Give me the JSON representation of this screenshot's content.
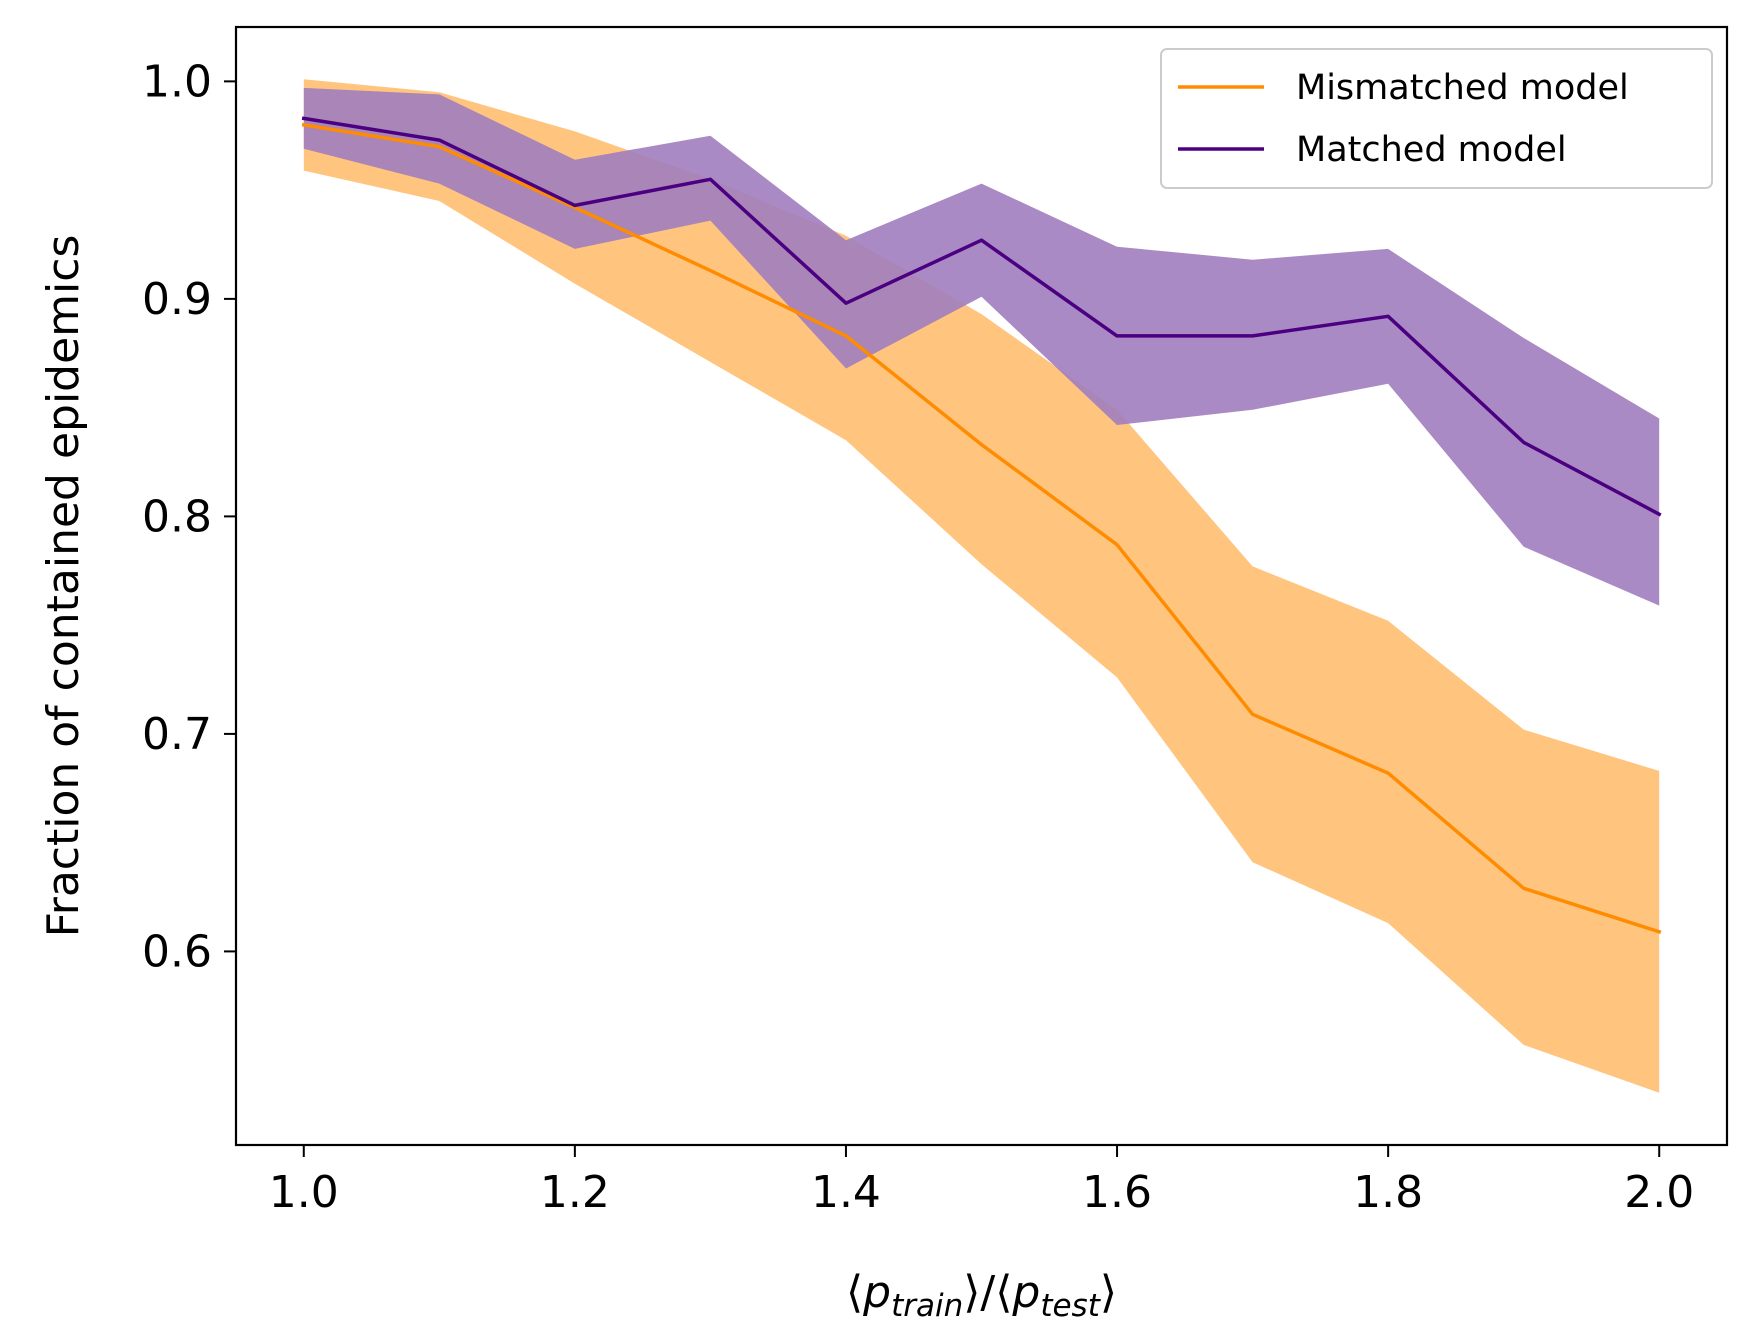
{
  "chart_data": {
    "type": "line",
    "x": [
      1.0,
      1.1,
      1.2,
      1.3,
      1.4,
      1.5,
      1.6,
      1.7,
      1.8,
      1.9,
      2.0
    ],
    "series": [
      {
        "name": "Mismatched model",
        "color": "#ff8c00",
        "band_color": "#ffc57f",
        "values": [
          0.98,
          0.97,
          0.942,
          0.913,
          0.883,
          0.833,
          0.787,
          0.709,
          0.682,
          0.629,
          0.609
        ],
        "upper": [
          1.001,
          0.995,
          0.977,
          0.955,
          0.929,
          0.893,
          0.849,
          0.777,
          0.752,
          0.702,
          0.683
        ],
        "lower": [
          0.959,
          0.945,
          0.907,
          0.871,
          0.835,
          0.778,
          0.726,
          0.641,
          0.613,
          0.557,
          0.535
        ]
      },
      {
        "name": "Matched model",
        "color": "#4b0082",
        "band_color": "#a17dbe",
        "values": [
          0.983,
          0.973,
          0.943,
          0.955,
          0.898,
          0.927,
          0.883,
          0.883,
          0.892,
          0.834,
          0.801
        ],
        "upper": [
          0.997,
          0.994,
          0.964,
          0.975,
          0.927,
          0.953,
          0.924,
          0.918,
          0.923,
          0.882,
          0.845
        ],
        "lower": [
          0.969,
          0.953,
          0.923,
          0.936,
          0.868,
          0.901,
          0.842,
          0.849,
          0.861,
          0.786,
          0.759
        ]
      }
    ],
    "xlabel": {
      "open1": "⟨",
      "base1": "p",
      "sub1": "train",
      "sep": "⟩/⟨",
      "base2": "p",
      "sub2": "test",
      "close2": "⟩"
    },
    "ylabel": "Fraction of contained epidemics",
    "xlim": [
      0.95,
      2.05
    ],
    "ylim": [
      0.511,
      1.025
    ],
    "xticks": [
      1.0,
      1.2,
      1.4,
      1.6,
      1.8,
      2.0
    ],
    "xtick_labels": [
      "1.0",
      "1.2",
      "1.4",
      "1.6",
      "1.8",
      "2.0"
    ],
    "yticks": [
      0.6,
      0.7,
      0.8,
      0.9,
      1.0
    ],
    "ytick_labels": [
      "0.6",
      "0.7",
      "0.8",
      "0.9",
      "1.0"
    ],
    "grid": false,
    "legend_position": "top-right"
  }
}
